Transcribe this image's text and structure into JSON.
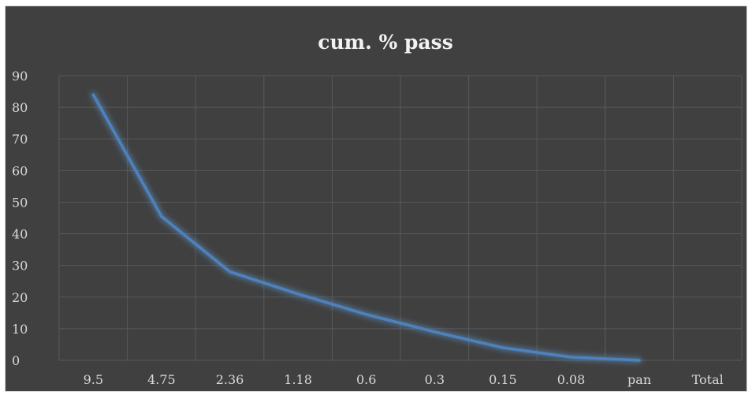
{
  "chart_data": {
    "type": "line",
    "title": "cum. % pass",
    "xlabel": "",
    "ylabel": "",
    "categories": [
      "9.5",
      "4.75",
      "2.36",
      "1.18",
      "0.6",
      "0.3",
      "0.15",
      "0.08",
      "pan",
      "Total"
    ],
    "series": [
      {
        "values": [
          84,
          45.5,
          28,
          21,
          14.5,
          9,
          4,
          1,
          0,
          null
        ]
      }
    ],
    "ylim": [
      0,
      90
    ],
    "y_ticks": [
      0,
      10,
      20,
      30,
      40,
      50,
      60,
      70,
      80,
      90
    ],
    "grid": true,
    "legend": "none",
    "colors": {
      "background": "#404040",
      "gridline": "#595959",
      "line": "#4f81bd",
      "glow": "#5b9bd5",
      "text": "#d9d9d9",
      "title": "#f2f2f2"
    }
  }
}
